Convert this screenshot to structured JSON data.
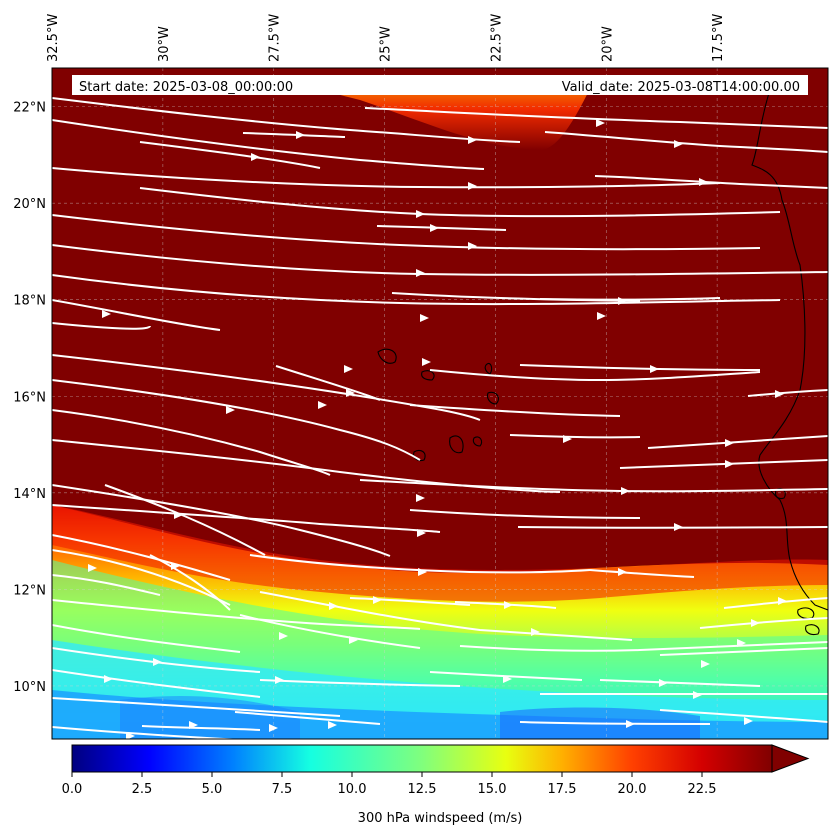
{
  "map": {
    "start_label": "Start date: 2025-03-08_00:00:00",
    "valid_label": "Valid_date: 2025-03-08T14:00:00.00",
    "lon_labels": [
      "32.5°W",
      "30°W",
      "27.5°W",
      "25°W",
      "22.5°W",
      "20°W",
      "17.5°W"
    ],
    "lat_labels": [
      "22°N",
      "20°N",
      "18°N",
      "16°N",
      "14°N",
      "12°N",
      "10°N"
    ],
    "lon_values": [
      -32.5,
      -30,
      -27.5,
      -25,
      -22.5,
      -20,
      -17.5
    ],
    "lat_values": [
      22,
      20,
      18,
      16,
      14,
      12,
      10
    ],
    "extent": {
      "lon_min": -32.5,
      "lon_max": -15.0,
      "lat_min": 8.9,
      "lat_max": 22.8
    },
    "field": "300 hPa windspeed",
    "streamlines": "white",
    "coastline_color": "#000000"
  },
  "colorbar": {
    "label": "300 hPa windspeed (m/s)",
    "ticks": [
      "0.0",
      "2.5",
      "5.0",
      "7.5",
      "10.0",
      "12.5",
      "15.0",
      "17.5",
      "20.0",
      "22.5"
    ],
    "tick_values": [
      0,
      2.5,
      5,
      7.5,
      10,
      12.5,
      15,
      17.5,
      20,
      22.5
    ],
    "vmin": 0,
    "vmax": 25,
    "extend": "max",
    "colormap": "jet"
  }
}
